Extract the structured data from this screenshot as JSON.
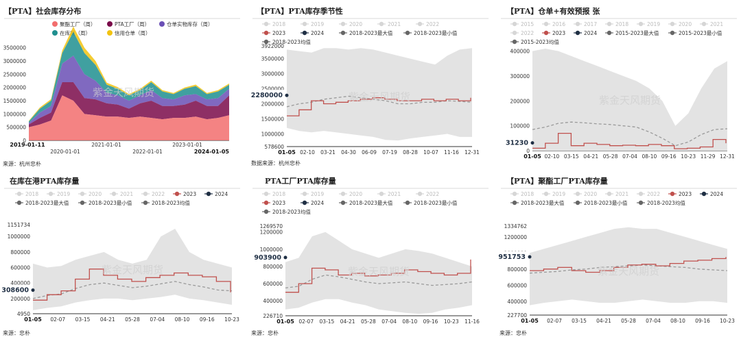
{
  "watermark": "紫金天风期货",
  "legend_labels": {
    "max": "2018-2023最大值",
    "min": "2018-2023最小值",
    "avg": "2018-2023均值",
    "max15": "2015-2023最大值",
    "min15": "2015-2023最小值",
    "avg15": "2015-2023均值"
  },
  "colors": {
    "y2023": "#c0504d",
    "y2024": "#1f2f44",
    "band": "#e3e3e3",
    "avg": "#999999"
  },
  "chart_data": [
    {
      "type": "area",
      "title": "【PTA】社会库存分布",
      "legend": [
        "聚酯工厂（周）",
        "PTA工厂（周）",
        "仓单实物库存（周）",
        "在库货（周）",
        "信用仓单（周）"
      ],
      "series_colors": [
        "#f26d6d",
        "#7a0a4a",
        "#6a4fb5",
        "#1f8f8f",
        "#f2c311"
      ],
      "yticks": [
        "3500000",
        "3000000",
        "2500000",
        "2000000",
        "1500000",
        "1000000",
        "500000",
        "0"
      ],
      "xticks": [
        "2019-01-11",
        "2020-01-01",
        "2021-01-01",
        "2022-01-01",
        "2023-01-01",
        "2024-01-05"
      ],
      "ylim": [
        0,
        3700000
      ],
      "source": "来源：杭州忠朴",
      "x": [
        "2019-01",
        "2019-07",
        "2020-01",
        "2020-04",
        "2020-07",
        "2020-10",
        "2021-01",
        "2021-04",
        "2021-07",
        "2021-10",
        "2022-01",
        "2022-04",
        "2022-07",
        "2022-10",
        "2023-01",
        "2023-04",
        "2023-07",
        "2023-10",
        "2024-01"
      ],
      "stacks": [
        [
          500000,
          600000,
          750000,
          1700000,
          1500000,
          1000000,
          950000,
          900000,
          900000,
          850000,
          900000,
          850000,
          800000,
          850000,
          850000,
          900000,
          800000,
          850000,
          950000
        ],
        [
          100000,
          250000,
          300000,
          500000,
          700000,
          600000,
          600000,
          500000,
          450000,
          350000,
          500000,
          650000,
          500000,
          450000,
          500000,
          600000,
          500000,
          450000,
          750000
        ],
        [
          60000,
          200000,
          250000,
          700000,
          1000000,
          900000,
          700000,
          400000,
          350000,
          300000,
          300000,
          400000,
          300000,
          250000,
          350000,
          250000,
          250000,
          300000,
          250000
        ],
        [
          60000,
          150000,
          200000,
          400000,
          900000,
          800000,
          600000,
          300000,
          250000,
          200000,
          200000,
          300000,
          250000,
          200000,
          250000,
          300000,
          200000,
          250000,
          150000
        ],
        [
          20000,
          50000,
          60000,
          100000,
          200000,
          200000,
          150000,
          80000,
          60000,
          50000,
          50000,
          60000,
          50000,
          40000,
          50000,
          60000,
          40000,
          50000,
          50000
        ]
      ]
    },
    {
      "type": "line",
      "title": "【PTA】PTA库存季节性",
      "legend_years": [
        "2018",
        "2019",
        "2020",
        "2021",
        "2022",
        "2023",
        "2024"
      ],
      "yticks": [
        "3922000",
        "3500000",
        "3000000",
        "2500000",
        "2000000",
        "1500000",
        "1000000",
        "578600"
      ],
      "ylim": [
        578600,
        3922000
      ],
      "xticks": [
        "01-05",
        "02-10",
        "03-21",
        "04-30",
        "06-09",
        "07-19",
        "08-28",
        "10-07",
        "11-16",
        "12-31"
      ],
      "callout": "2280000",
      "source": "数据来源：杭州忠朴",
      "band_max": [
        3800000,
        3750000,
        3700000,
        3850000,
        3850000,
        3800000,
        3850000,
        3800000,
        3700000,
        3600000,
        3500000,
        3400000,
        3300000,
        3600000,
        3800000,
        3850000
      ],
      "band_min": [
        1200000,
        1100000,
        1050000,
        1100000,
        1050000,
        1000000,
        950000,
        900000,
        800000,
        780000,
        850000,
        900000,
        950000,
        1000000,
        900000,
        900000
      ],
      "avg": [
        1900000,
        2000000,
        2050000,
        2150000,
        2200000,
        2250000,
        2200000,
        2150000,
        2100000,
        2000000,
        2000000,
        2050000,
        2050000,
        2100000,
        2080000,
        2050000
      ],
      "y2023": [
        1600000,
        1800000,
        2100000,
        2000000,
        2050000,
        2100000,
        2150000,
        2200000,
        2150000,
        2100000,
        2100000,
        2150000,
        2100000,
        2150000,
        2100000,
        2200000
      ],
      "y2024": [
        2280000
      ]
    },
    {
      "type": "line",
      "title": "【PTA】仓单+有效预报 张",
      "legend_years": [
        "2015",
        "2016",
        "2017",
        "2018",
        "2019",
        "2020",
        "2021",
        "2022",
        "2023",
        "2024"
      ],
      "yticks": [
        "400000",
        "300000",
        "200000",
        "100000",
        "0"
      ],
      "ylim": [
        0,
        410000
      ],
      "xticks": [
        "01-05",
        "02-10",
        "03-15",
        "04-21",
        "05-28",
        "07-04",
        "08-10",
        "09-16",
        "10-23",
        "11-29",
        "12-31"
      ],
      "callout": "31230",
      "band_max": [
        400000,
        410000,
        400000,
        380000,
        360000,
        340000,
        320000,
        300000,
        280000,
        250000,
        200000,
        100000,
        150000,
        250000,
        330000,
        360000
      ],
      "band_min": [
        0,
        0,
        0,
        0,
        0,
        0,
        0,
        0,
        0,
        0,
        0,
        0,
        0,
        0,
        0,
        0
      ],
      "avg": [
        85000,
        95000,
        110000,
        115000,
        112000,
        108000,
        105000,
        100000,
        95000,
        75000,
        50000,
        20000,
        35000,
        65000,
        85000,
        88000
      ],
      "y2023": [
        10000,
        30000,
        70000,
        20000,
        30000,
        25000,
        20000,
        22000,
        20000,
        25000,
        20000,
        8000,
        10000,
        15000,
        45000,
        30000
      ],
      "y2024": [
        31230
      ]
    },
    {
      "type": "line",
      "title": "在库在港PTA库存量",
      "legend_years": [
        "2018",
        "2019",
        "2020",
        "2021",
        "2022",
        "2023",
        "2024"
      ],
      "yticks": [
        "1151734",
        "1000000",
        "800000",
        "600000",
        "400000",
        "200000",
        "4950"
      ],
      "ylim": [
        4950,
        1151734
      ],
      "xticks": [
        "01-05",
        "02-07",
        "03-15",
        "04-21",
        "05-28",
        "07-04",
        "08-10",
        "09-16",
        "10-23"
      ],
      "callout": "308600",
      "source": "来源：忠朴",
      "band_max": [
        650000,
        600000,
        620000,
        700000,
        750000,
        800000,
        700000,
        650000,
        700000,
        1000000,
        1100000,
        800000,
        700000,
        650000,
        600000
      ],
      "band_min": [
        50000,
        80000,
        100000,
        150000,
        180000,
        200000,
        200000,
        180000,
        200000,
        220000,
        250000,
        200000,
        180000,
        150000,
        120000
      ],
      "avg": [
        200000,
        240000,
        260000,
        330000,
        380000,
        400000,
        370000,
        340000,
        360000,
        390000,
        420000,
        380000,
        350000,
        310000,
        300000
      ],
      "y2023": [
        180000,
        250000,
        300000,
        450000,
        580000,
        500000,
        450000,
        420000,
        470000,
        500000,
        530000,
        500000,
        480000,
        420000,
        280000
      ],
      "y2024": [
        308600
      ]
    },
    {
      "type": "line",
      "title": "PTA工厂PTA库存量",
      "legend_years": [
        "2018",
        "2019",
        "2020",
        "2021",
        "2022",
        "2023",
        "2024"
      ],
      "yticks": [
        "1269570",
        "1200000",
        "1000000",
        "800000",
        "600000",
        "400000",
        "226710"
      ],
      "ylim": [
        226710,
        1269570
      ],
      "xticks": [
        "01-05",
        "02-07",
        "03-15",
        "04-21",
        "05-28",
        "07-04",
        "08-10",
        "09-16",
        "10-23",
        "11-16"
      ],
      "callout": "903900",
      "source": "来源：忠朴",
      "band_max": [
        850000,
        900000,
        1150000,
        1200000,
        1100000,
        1000000,
        950000,
        900000,
        950000,
        1000000,
        980000,
        950000,
        900000,
        850000,
        800000
      ],
      "band_min": [
        300000,
        320000,
        380000,
        420000,
        420000,
        380000,
        350000,
        300000,
        280000,
        260000,
        250000,
        260000,
        300000,
        320000,
        350000
      ],
      "avg": [
        550000,
        570000,
        650000,
        700000,
        680000,
        650000,
        620000,
        600000,
        610000,
        620000,
        600000,
        580000,
        590000,
        600000,
        620000
      ],
      "y2023": [
        500000,
        600000,
        780000,
        760000,
        700000,
        720000,
        690000,
        700000,
        720000,
        760000,
        740000,
        720000,
        700000,
        720000,
        880000
      ],
      "y2024": [
        903900
      ]
    },
    {
      "type": "line",
      "title": "【PTA】聚酯工厂PTA库存量",
      "legend_years": [
        "2018",
        "2019",
        "2020",
        "2021",
        "2022",
        "2023",
        "2024"
      ],
      "yticks": [
        "1334762",
        "1200000",
        "1000000",
        "800000",
        "600000",
        "400000",
        "227700"
      ],
      "ylim": [
        227700,
        1334762
      ],
      "xticks": [
        "01-05",
        "02-07",
        "03-15",
        "04-21",
        "05-28",
        "07-04",
        "08-10",
        "09-16",
        "10-23"
      ],
      "callout": "951753",
      "source": "来源：忠朴",
      "band_max": [
        1000000,
        1050000,
        1100000,
        1150000,
        1200000,
        1250000,
        1300000,
        1320000,
        1300000,
        1300000,
        1250000,
        1200000,
        1150000,
        1100000,
        1050000
      ],
      "band_min": [
        350000,
        380000,
        400000,
        420000,
        400000,
        380000,
        380000,
        400000,
        420000,
        400000,
        380000,
        380000,
        400000,
        400000,
        380000
      ],
      "avg": [
        750000,
        760000,
        770000,
        790000,
        800000,
        820000,
        830000,
        840000,
        850000,
        840000,
        830000,
        820000,
        800000,
        790000,
        780000
      ],
      "y2023": [
        780000,
        800000,
        820000,
        780000,
        760000,
        780000,
        820000,
        850000,
        860000,
        840000,
        870000,
        900000,
        910000,
        930000,
        950000
      ],
      "y2024": [
        951753
      ]
    }
  ]
}
